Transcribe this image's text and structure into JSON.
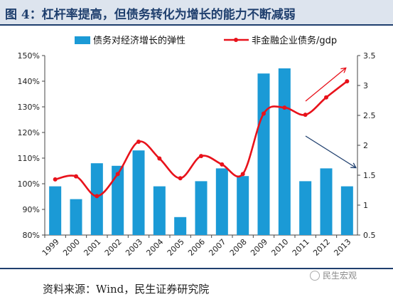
{
  "header": {
    "title": "图 4：杠杆率提高，但债务转化为增长的能力不断减弱"
  },
  "footer": {
    "source": "资料来源：Wind，民生证券研究院",
    "watermark": "民生宏观"
  },
  "colors": {
    "bar": "#1b9ad6",
    "line": "#e8121b",
    "arrow_up": "#e8121b",
    "arrow_down": "#1f3f6e",
    "title": "#1f3f6e"
  },
  "chart_data": {
    "type": "bar+line",
    "categories": [
      "1999",
      "2000",
      "2001",
      "2002",
      "2003",
      "2004",
      "2005",
      "2006",
      "2007",
      "2008",
      "2009",
      "2010",
      "2011",
      "2012",
      "2013"
    ],
    "series": [
      {
        "name": "债务对经济增长的弹性",
        "type": "bar",
        "axis": "left",
        "values": [
          0.99,
          0.94,
          1.08,
          1.07,
          1.13,
          0.99,
          0.87,
          1.01,
          1.06,
          1.03,
          1.43,
          1.45,
          1.01,
          1.06,
          0.99
        ]
      },
      {
        "name": "非金融企业债务/gdp",
        "type": "line",
        "axis": "right",
        "values": [
          1.43,
          1.48,
          1.15,
          1.52,
          2.06,
          1.78,
          1.45,
          1.82,
          1.68,
          1.52,
          2.53,
          2.63,
          2.51,
          2.8,
          3.07
        ]
      }
    ],
    "left_axis": {
      "min": 0.8,
      "max": 1.5,
      "ticks": [
        "80%",
        "90%",
        "100%",
        "110%",
        "120%",
        "130%",
        "140%",
        "150%"
      ]
    },
    "right_axis": {
      "min": 0.5,
      "max": 3.5,
      "ticks": [
        "0.5",
        "1",
        "1.5",
        "2",
        "2.5",
        "3",
        "3.5"
      ]
    },
    "legend_position": "top",
    "annotations": [
      {
        "kind": "arrow",
        "direction": "up",
        "color": "red",
        "near": "2011-2013, line"
      },
      {
        "kind": "arrow",
        "direction": "down",
        "color": "navy",
        "near": "2011-2013, bars"
      }
    ]
  }
}
